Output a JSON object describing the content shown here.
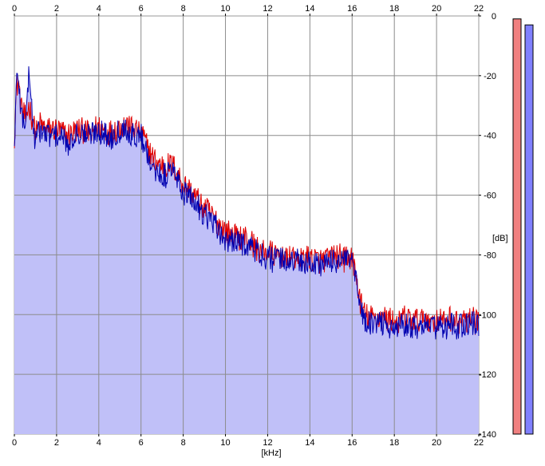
{
  "chart_data": {
    "type": "area",
    "xlabel": "[kHz]",
    "ylabel": "[dB]",
    "xlim": [
      0,
      22
    ],
    "ylim": [
      -140,
      0
    ],
    "x_ticks": [
      0,
      2,
      4,
      6,
      8,
      10,
      12,
      14,
      16,
      18,
      20,
      22
    ],
    "y_ticks": [
      0,
      -20,
      -40,
      -60,
      -80,
      -100,
      -120,
      -140
    ],
    "y_tick_labels": [
      "0",
      "-20",
      "-40",
      "-60",
      "-80",
      "-100",
      "-120",
      "-140"
    ],
    "grid": true,
    "x_ticks_top_and_bottom": true,
    "y_ticks_side": "right",
    "colors": {
      "fill": "#c0c0f8",
      "channel_1": "#e00000",
      "channel_2": "#0000b0",
      "grid": "#8c8c8c",
      "meter_1": "#f08080",
      "meter_2": "#8080ff"
    },
    "series": [
      {
        "x": [
          0,
          0.1,
          0.2,
          0.3,
          0.5,
          0.7,
          0.9,
          1.0,
          1.2,
          1.5,
          2.0,
          2.5,
          3.0,
          3.5,
          4.0,
          4.5,
          5.0,
          5.3,
          5.6,
          6.0,
          6.3,
          6.6,
          7.0,
          7.5,
          8.0,
          8.5,
          9.0,
          9.5,
          10.0,
          10.5,
          11.0,
          11.5,
          12.0,
          12.5,
          13.0,
          13.5,
          14.0,
          14.5,
          15.0,
          15.5,
          16.0,
          16.2,
          16.4,
          16.6,
          16.8,
          17.0,
          17.5,
          18.0,
          18.5,
          19.0,
          19.5,
          20.0,
          20.5,
          21.0,
          21.5,
          22.0
        ],
        "values": [
          -40,
          -24,
          -22,
          -30,
          -34,
          -30,
          -36,
          -40,
          -36,
          -38,
          -38,
          -40,
          -38,
          -39,
          -37,
          -39,
          -37,
          -36,
          -38,
          -38,
          -44,
          -48,
          -50,
          -50,
          -56,
          -60,
          -64,
          -68,
          -72,
          -74,
          -74,
          -78,
          -79,
          -80,
          -80,
          -81,
          -81,
          -82,
          -81,
          -80,
          -81,
          -88,
          -96,
          -100,
          -101,
          -101,
          -101,
          -102,
          -101,
          -102,
          -101,
          -102,
          -101,
          -102,
          -102,
          -101
        ]
      },
      {
        "x": [
          0,
          0.1,
          0.2,
          0.3,
          0.5,
          0.7,
          0.9,
          1.0,
          1.2,
          1.5,
          2.0,
          2.5,
          3.0,
          3.5,
          4.0,
          4.5,
          5.0,
          5.3,
          5.6,
          6.0,
          6.3,
          6.6,
          7.0,
          7.5,
          8.0,
          8.5,
          9.0,
          9.5,
          10.0,
          10.5,
          11.0,
          11.5,
          12.0,
          12.5,
          13.0,
          13.5,
          14.0,
          14.5,
          15.0,
          15.5,
          16.0,
          16.2,
          16.4,
          16.6,
          16.8,
          17.0,
          17.5,
          18.0,
          18.5,
          19.0,
          19.5,
          20.0,
          20.5,
          21.0,
          21.5,
          22.0
        ],
        "values": [
          -44,
          -22,
          -20,
          -32,
          -36,
          -18,
          -38,
          -42,
          -38,
          -40,
          -40,
          -42,
          -39,
          -40,
          -38,
          -41,
          -38,
          -37,
          -40,
          -40,
          -46,
          -50,
          -53,
          -52,
          -59,
          -62,
          -66,
          -70,
          -75,
          -76,
          -76,
          -79,
          -81,
          -81,
          -82,
          -82,
          -83,
          -83,
          -82,
          -82,
          -82,
          -90,
          -98,
          -102,
          -103,
          -103,
          -103,
          -104,
          -103,
          -104,
          -103,
          -104,
          -103,
          -104,
          -103,
          -103
        ]
      }
    ],
    "level_meters": [
      -1,
      -3
    ]
  }
}
